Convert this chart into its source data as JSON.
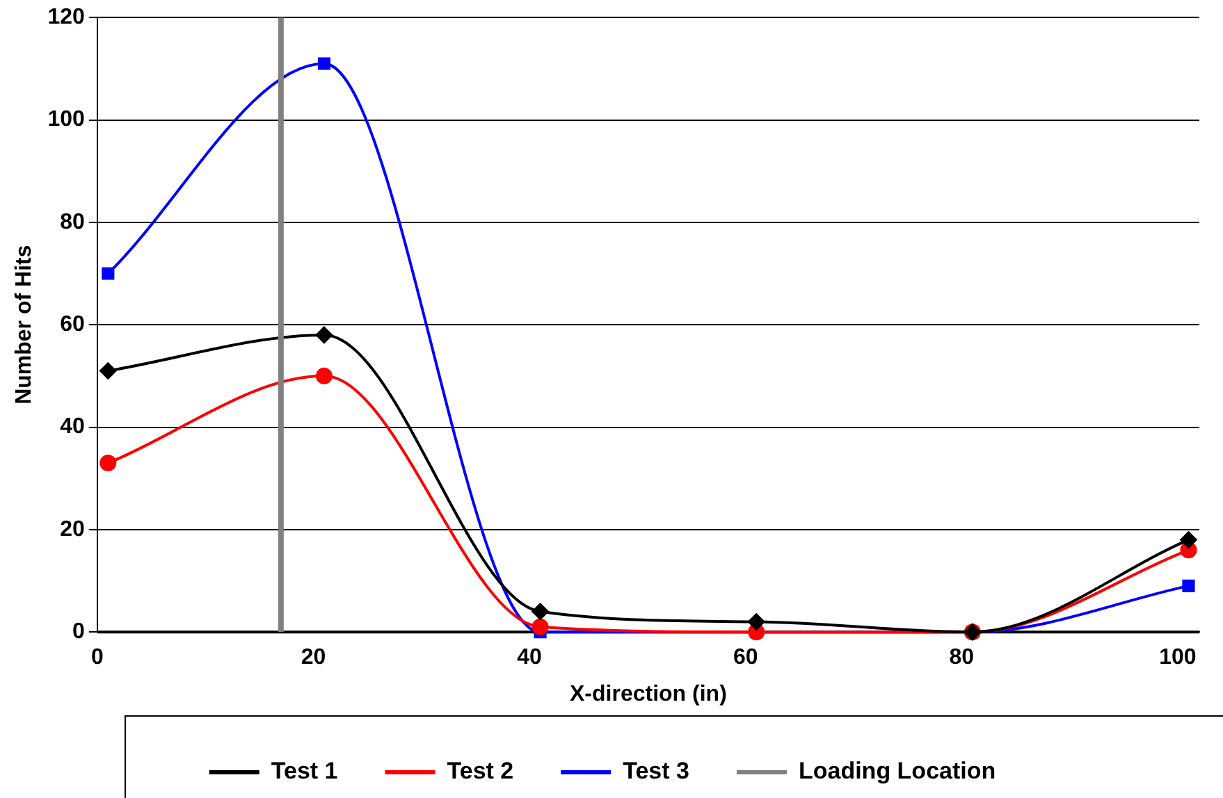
{
  "chart_data": {
    "type": "line",
    "xlabel": "X-direction (in)",
    "ylabel": "Number of Hits",
    "x": [
      1,
      21,
      41,
      61,
      81,
      101
    ],
    "series": [
      {
        "name": "Test 1",
        "color": "#000000",
        "marker": "diamond",
        "values": [
          51,
          58,
          4,
          2,
          0,
          18
        ]
      },
      {
        "name": "Test 2",
        "color": "#ff0000",
        "marker": "circle",
        "values": [
          33,
          50,
          1,
          0,
          0,
          16
        ]
      },
      {
        "name": "Test 3",
        "color": "#0000ff",
        "marker": "square",
        "values": [
          70,
          111,
          0,
          0,
          0,
          9
        ]
      }
    ],
    "ref_lines": [
      {
        "axis": "x",
        "value": 17,
        "label": "Loading Location",
        "color": "#808080"
      }
    ],
    "xlim": [
      0,
      102
    ],
    "xticks": [
      0,
      20,
      40,
      60,
      80,
      100
    ],
    "ylim": [
      0,
      120
    ],
    "yticks": [
      0,
      20,
      40,
      60,
      80,
      100,
      120
    ],
    "grid": "y",
    "legend": "bottom"
  }
}
